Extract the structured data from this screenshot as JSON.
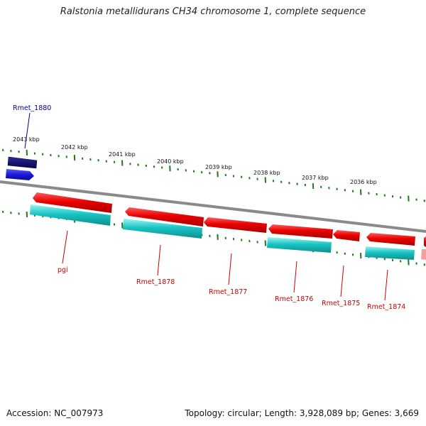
{
  "title": "Ralstonia metallidurans CH34 chromosome 1, complete sequence",
  "footer": {
    "accession": "Accession: NC_007973",
    "stats": "Topology: circular; Length: 3,928,089 bp; Genes: 3,669"
  },
  "colors": {
    "backbone": "#8a8a8a",
    "tick": "#1e7a1e",
    "forward_feature": "#1a1ad6",
    "forward_feature_dark": "#0b0b6e",
    "reverse_feature": "#e80000",
    "cds": "#19c4c4",
    "blue_label": "#00008b",
    "red_label": "#cc0000"
  },
  "kbp_ticks": [
    "2043 kbp",
    "2042 kbp",
    "2041 kbp",
    "2040 kbp",
    "2039 kbp",
    "2038 kbp",
    "2037 kbp",
    "2036 kbp"
  ],
  "gene_labels": [
    {
      "text": "Rmet_1880",
      "strand": "forward"
    },
    {
      "text": "pgi",
      "strand": "reverse"
    },
    {
      "text": "Rmet_1878",
      "strand": "reverse"
    },
    {
      "text": "Rmet_1877",
      "strand": "reverse"
    },
    {
      "text": "Rmet_1876",
      "strand": "reverse"
    },
    {
      "text": "Rmet_1875",
      "strand": "reverse"
    },
    {
      "text": "Rmet_1874",
      "strand": "reverse"
    }
  ]
}
